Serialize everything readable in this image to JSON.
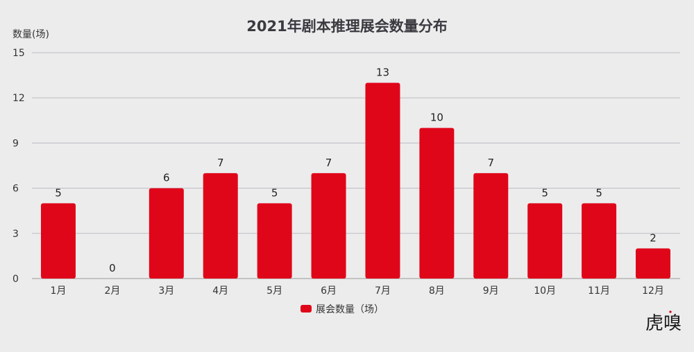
{
  "chart_data": {
    "type": "bar",
    "title": "2021年剧本推理展会数量分布",
    "ylabel": "数量(场)",
    "xlabel": "",
    "categories": [
      "1月",
      "2月",
      "3月",
      "4月",
      "5月",
      "6月",
      "7月",
      "8月",
      "9月",
      "10月",
      "11月",
      "12月"
    ],
    "series": [
      {
        "name": "展会数量（场）",
        "values": [
          5,
          0,
          6,
          7,
          5,
          7,
          13,
          10,
          7,
          5,
          5,
          2
        ],
        "color": "#e0061a"
      }
    ],
    "ylim": [
      0,
      15
    ],
    "yticks": [
      0,
      3,
      6,
      9,
      12,
      15
    ],
    "grid": true,
    "legend_position": "bottom",
    "data_labels": true
  },
  "watermark": "虎嗅"
}
